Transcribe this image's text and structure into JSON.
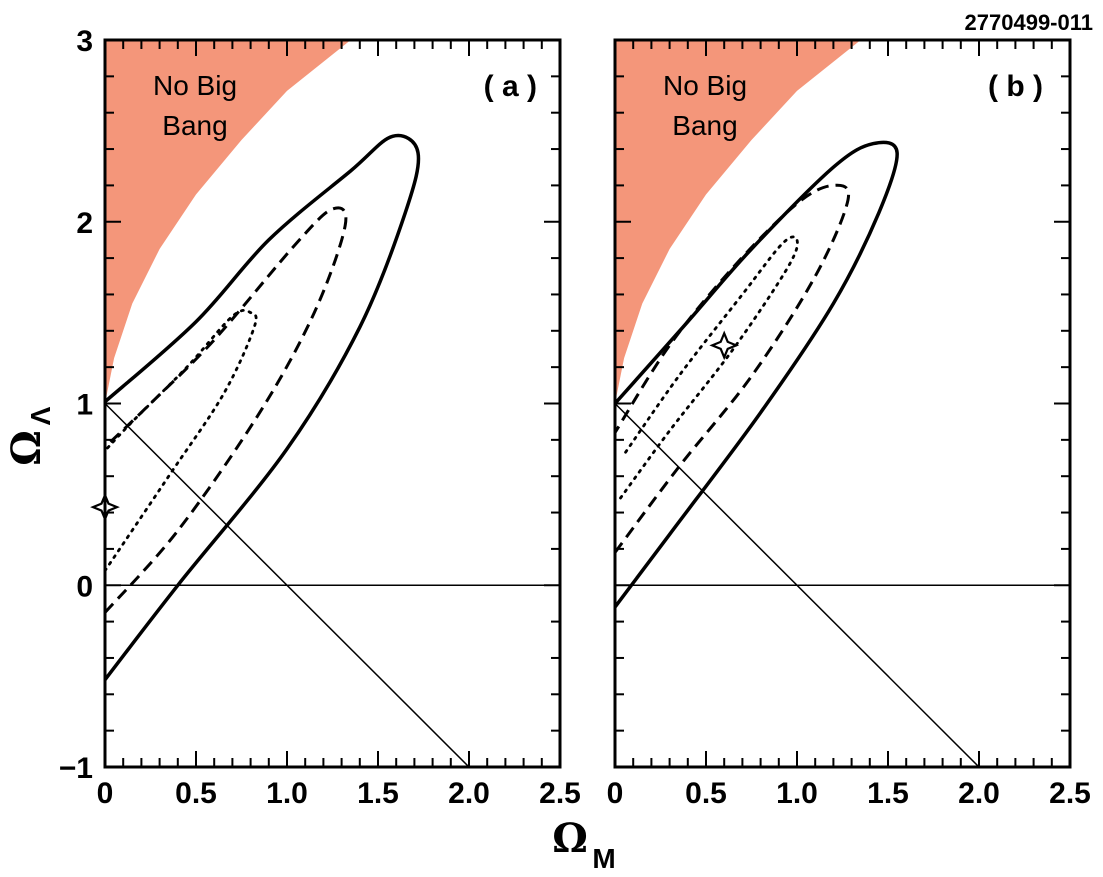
{
  "figure_id": "2770499-011",
  "chart_data": [
    {
      "type": "line",
      "panel_label": "( a )",
      "xlabel": "Ω",
      "xlabel_sub": "M",
      "ylabel": "Ω",
      "ylabel_sub": "Λ",
      "xlim": [
        0,
        2.5
      ],
      "ylim": [
        -1,
        3
      ],
      "x_ticks": [
        "0",
        "0.5",
        "1.0",
        "1.5",
        "2.0",
        "2.5"
      ],
      "y_ticks": [
        "−1",
        "0",
        "1",
        "2",
        "3"
      ],
      "shaded_region": {
        "label_line1": "No  Big",
        "label_line2": "Bang",
        "color": "#f4967a",
        "boundary": [
          [
            0,
            1.0
          ],
          [
            0.05,
            1.25
          ],
          [
            0.15,
            1.55
          ],
          [
            0.3,
            1.85
          ],
          [
            0.5,
            2.15
          ],
          [
            0.75,
            2.45
          ],
          [
            1.0,
            2.72
          ],
          [
            1.35,
            3.0
          ]
        ]
      },
      "reference_lines": [
        {
          "from": [
            0,
            1
          ],
          "to": [
            2,
            -1
          ],
          "description": "flat universe"
        },
        {
          "from": [
            0,
            0
          ],
          "to": [
            2.5,
            0
          ],
          "description": "zero Λ"
        }
      ],
      "best_fit": [
        0.0,
        0.43
      ],
      "contours": [
        {
          "style": "solid",
          "points": [
            [
              0,
              -0.52
            ],
            [
              0.4,
              0.0
            ],
            [
              1.0,
              0.75
            ],
            [
              1.4,
              1.42
            ],
            [
              1.65,
              2.05
            ],
            [
              1.72,
              2.38
            ],
            [
              1.58,
              2.47
            ],
            [
              1.35,
              2.28
            ],
            [
              0.9,
              1.9
            ],
            [
              0.5,
              1.45
            ],
            [
              0.0,
              1.01
            ]
          ]
        },
        {
          "style": "dashed",
          "points": [
            [
              0,
              -0.15
            ],
            [
              0.4,
              0.3
            ],
            [
              0.85,
              0.95
            ],
            [
              1.15,
              1.5
            ],
            [
              1.32,
              1.98
            ],
            [
              1.25,
              2.07
            ],
            [
              1.05,
              1.88
            ],
            [
              0.6,
              1.35
            ],
            [
              0.25,
              1.0
            ],
            [
              0.0,
              0.76
            ]
          ]
        },
        {
          "style": "dotted",
          "points": [
            [
              0,
              0.08
            ],
            [
              0.35,
              0.6
            ],
            [
              0.65,
              1.05
            ],
            [
              0.82,
              1.42
            ],
            [
              0.8,
              1.5
            ],
            [
              0.7,
              1.48
            ],
            [
              0.45,
              1.2
            ],
            [
              0.15,
              0.9
            ],
            [
              0.0,
              0.74
            ]
          ]
        }
      ]
    },
    {
      "type": "line",
      "panel_label": "( b )",
      "xlim": [
        0,
        2.5
      ],
      "ylim": [
        -1,
        3
      ],
      "x_ticks": [
        "0",
        "0.5",
        "1.0",
        "1.5",
        "2.0",
        "2.5"
      ],
      "shaded_region": {
        "label_line1": "No  Big",
        "label_line2": "Bang",
        "color": "#f4967a",
        "boundary": [
          [
            0,
            1.0
          ],
          [
            0.05,
            1.25
          ],
          [
            0.15,
            1.55
          ],
          [
            0.3,
            1.85
          ],
          [
            0.5,
            2.15
          ],
          [
            0.75,
            2.45
          ],
          [
            1.0,
            2.72
          ],
          [
            1.35,
            3.0
          ]
        ]
      },
      "reference_lines": [
        {
          "from": [
            0,
            1
          ],
          "to": [
            2,
            -1
          ],
          "description": "flat universe"
        },
        {
          "from": [
            0,
            0
          ],
          "to": [
            2.5,
            0
          ],
          "description": "zero Λ"
        }
      ],
      "best_fit": [
        0.6,
        1.32
      ],
      "contours": [
        {
          "style": "solid",
          "points": [
            [
              0,
              -0.12
            ],
            [
              0.3,
              0.28
            ],
            [
              0.8,
              0.95
            ],
            [
              1.2,
              1.55
            ],
            [
              1.45,
              2.05
            ],
            [
              1.55,
              2.38
            ],
            [
              1.42,
              2.43
            ],
            [
              1.2,
              2.3
            ],
            [
              0.75,
              1.85
            ],
            [
              0.4,
              1.45
            ],
            [
              0.0,
              1.0
            ]
          ]
        },
        {
          "style": "dashed",
          "points": [
            [
              0,
              0.18
            ],
            [
              0.35,
              0.65
            ],
            [
              0.75,
              1.15
            ],
            [
              1.1,
              1.7
            ],
            [
              1.28,
              2.12
            ],
            [
              1.2,
              2.2
            ],
            [
              1.0,
              2.1
            ],
            [
              0.65,
              1.75
            ],
            [
              0.3,
              1.32
            ],
            [
              0.0,
              0.84
            ]
          ]
        },
        {
          "style": "dotted",
          "points": [
            [
              0.03,
              0.48
            ],
            [
              0.3,
              0.85
            ],
            [
              0.65,
              1.3
            ],
            [
              0.95,
              1.75
            ],
            [
              1.0,
              1.9
            ],
            [
              0.92,
              1.88
            ],
            [
              0.7,
              1.6
            ],
            [
              0.35,
              1.15
            ],
            [
              0.05,
              0.72
            ]
          ]
        }
      ]
    }
  ]
}
